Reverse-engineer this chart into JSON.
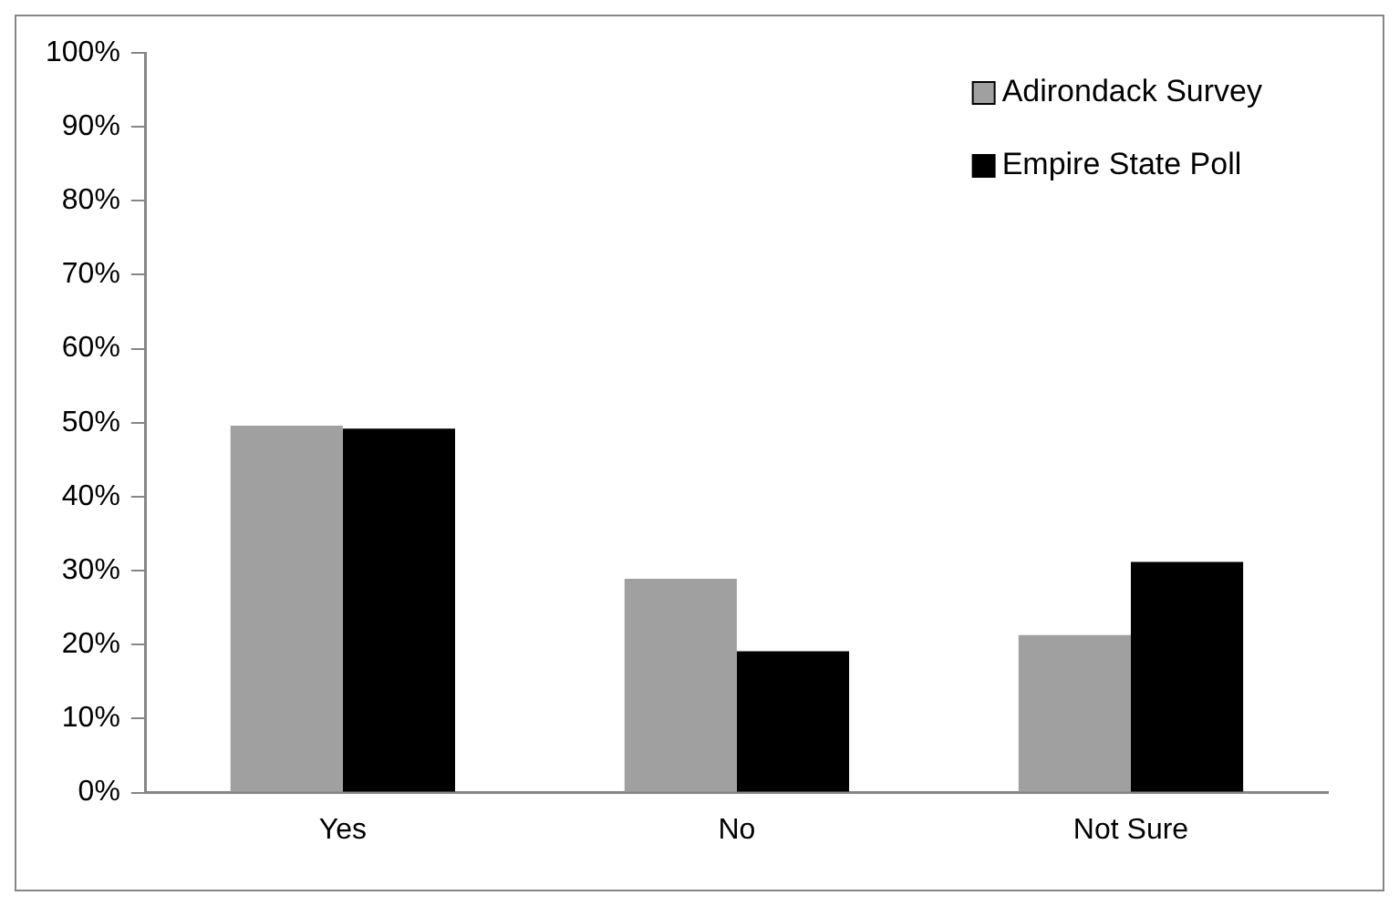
{
  "chart_data": {
    "type": "bar",
    "categories": [
      "Yes",
      "No",
      "Not Sure"
    ],
    "series": [
      {
        "name": "Adirondack Survey",
        "color": "#a0a0a0",
        "values": [
          49.6,
          28.9,
          21.3
        ]
      },
      {
        "name": "Empire State Poll",
        "color": "#000000",
        "values": [
          49.2,
          19.1,
          31.2
        ]
      }
    ],
    "ylim": [
      0,
      100
    ],
    "yticks": [
      {
        "value": 0,
        "label": "0%"
      },
      {
        "value": 10,
        "label": "10%"
      },
      {
        "value": 20,
        "label": "20%"
      },
      {
        "value": 30,
        "label": "30%"
      },
      {
        "value": 40,
        "label": "40%"
      },
      {
        "value": 50,
        "label": "50%"
      },
      {
        "value": 60,
        "label": "60%"
      },
      {
        "value": 70,
        "label": "70%"
      },
      {
        "value": 80,
        "label": "80%"
      },
      {
        "value": 90,
        "label": "90%"
      },
      {
        "value": 100,
        "label": "100%"
      }
    ],
    "grid": false,
    "legend": "top right"
  }
}
